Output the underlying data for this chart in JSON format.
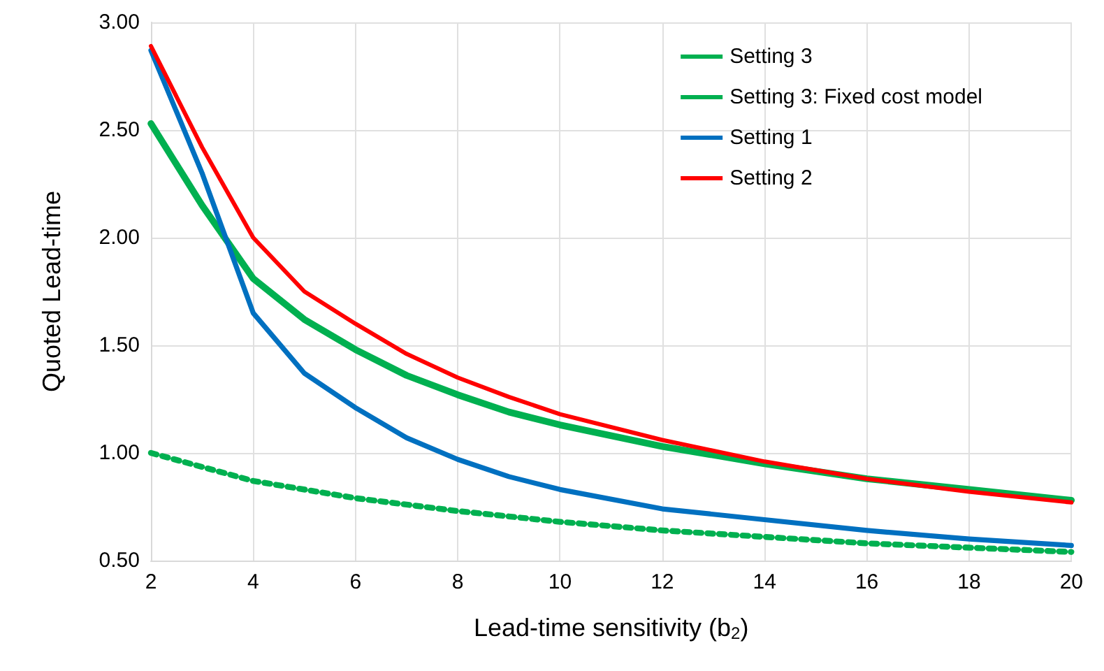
{
  "chart_data": {
    "type": "line",
    "xlabel": "Lead-time sensitivity (b$_{2}$)",
    "ylabel": "Quoted Lead-time",
    "xlim": [
      2,
      20
    ],
    "xticks": [
      2,
      4,
      6,
      8,
      10,
      12,
      14,
      16,
      18,
      20
    ],
    "ylim": [
      0.5,
      3
    ],
    "yticks": [
      {
        "value": 0.5,
        "label": "0.50"
      },
      {
        "value": 1,
        "label": "1.00"
      },
      {
        "value": 1.5,
        "label": "1.50"
      },
      {
        "value": 2,
        "label": "2.00"
      },
      {
        "value": 2.5,
        "label": "2.50"
      },
      {
        "value": 3,
        "label": "3.00"
      }
    ],
    "grid": true,
    "legend": "top right",
    "marker": "none",
    "series": [
      {
        "name": "Setting 3",
        "color": "#00b050",
        "line_style": "solid",
        "x": [
          2,
          3,
          4,
          5,
          6,
          7,
          8,
          9,
          10,
          12,
          14,
          16,
          18,
          20
        ],
        "values": [
          2.53,
          2.15,
          1.81,
          1.62,
          1.48,
          1.36,
          1.27,
          1.19,
          1.13,
          1.03,
          0.95,
          0.88,
          0.83,
          0.78
        ]
      },
      {
        "name": "Setting 3: Fixed cost model",
        "color": "#00b050",
        "line_style": "dotted",
        "x": [
          2,
          4,
          6,
          8,
          10,
          12,
          14,
          16,
          18,
          20
        ],
        "values": [
          1.0,
          0.87,
          0.79,
          0.73,
          0.68,
          0.64,
          0.61,
          0.58,
          0.56,
          0.54
        ]
      },
      {
        "name": "Setting 1",
        "color": "#0070c0",
        "line_style": "solid",
        "x": [
          2,
          3,
          4,
          5,
          6,
          7,
          8,
          9,
          10,
          12,
          14,
          16,
          18,
          20
        ],
        "values": [
          2.87,
          2.3,
          1.65,
          1.37,
          1.21,
          1.07,
          0.97,
          0.89,
          0.83,
          0.74,
          0.69,
          0.64,
          0.6,
          0.57
        ]
      },
      {
        "name": "Setting 2",
        "color": "#ff0000",
        "line_style": "solid",
        "x": [
          2,
          3,
          4,
          5,
          6,
          7,
          8,
          9,
          10,
          12,
          14,
          16,
          18,
          20
        ],
        "values": [
          2.89,
          2.42,
          2.0,
          1.75,
          1.6,
          1.46,
          1.35,
          1.26,
          1.18,
          1.06,
          0.96,
          0.88,
          0.82,
          0.77
        ]
      }
    ]
  }
}
